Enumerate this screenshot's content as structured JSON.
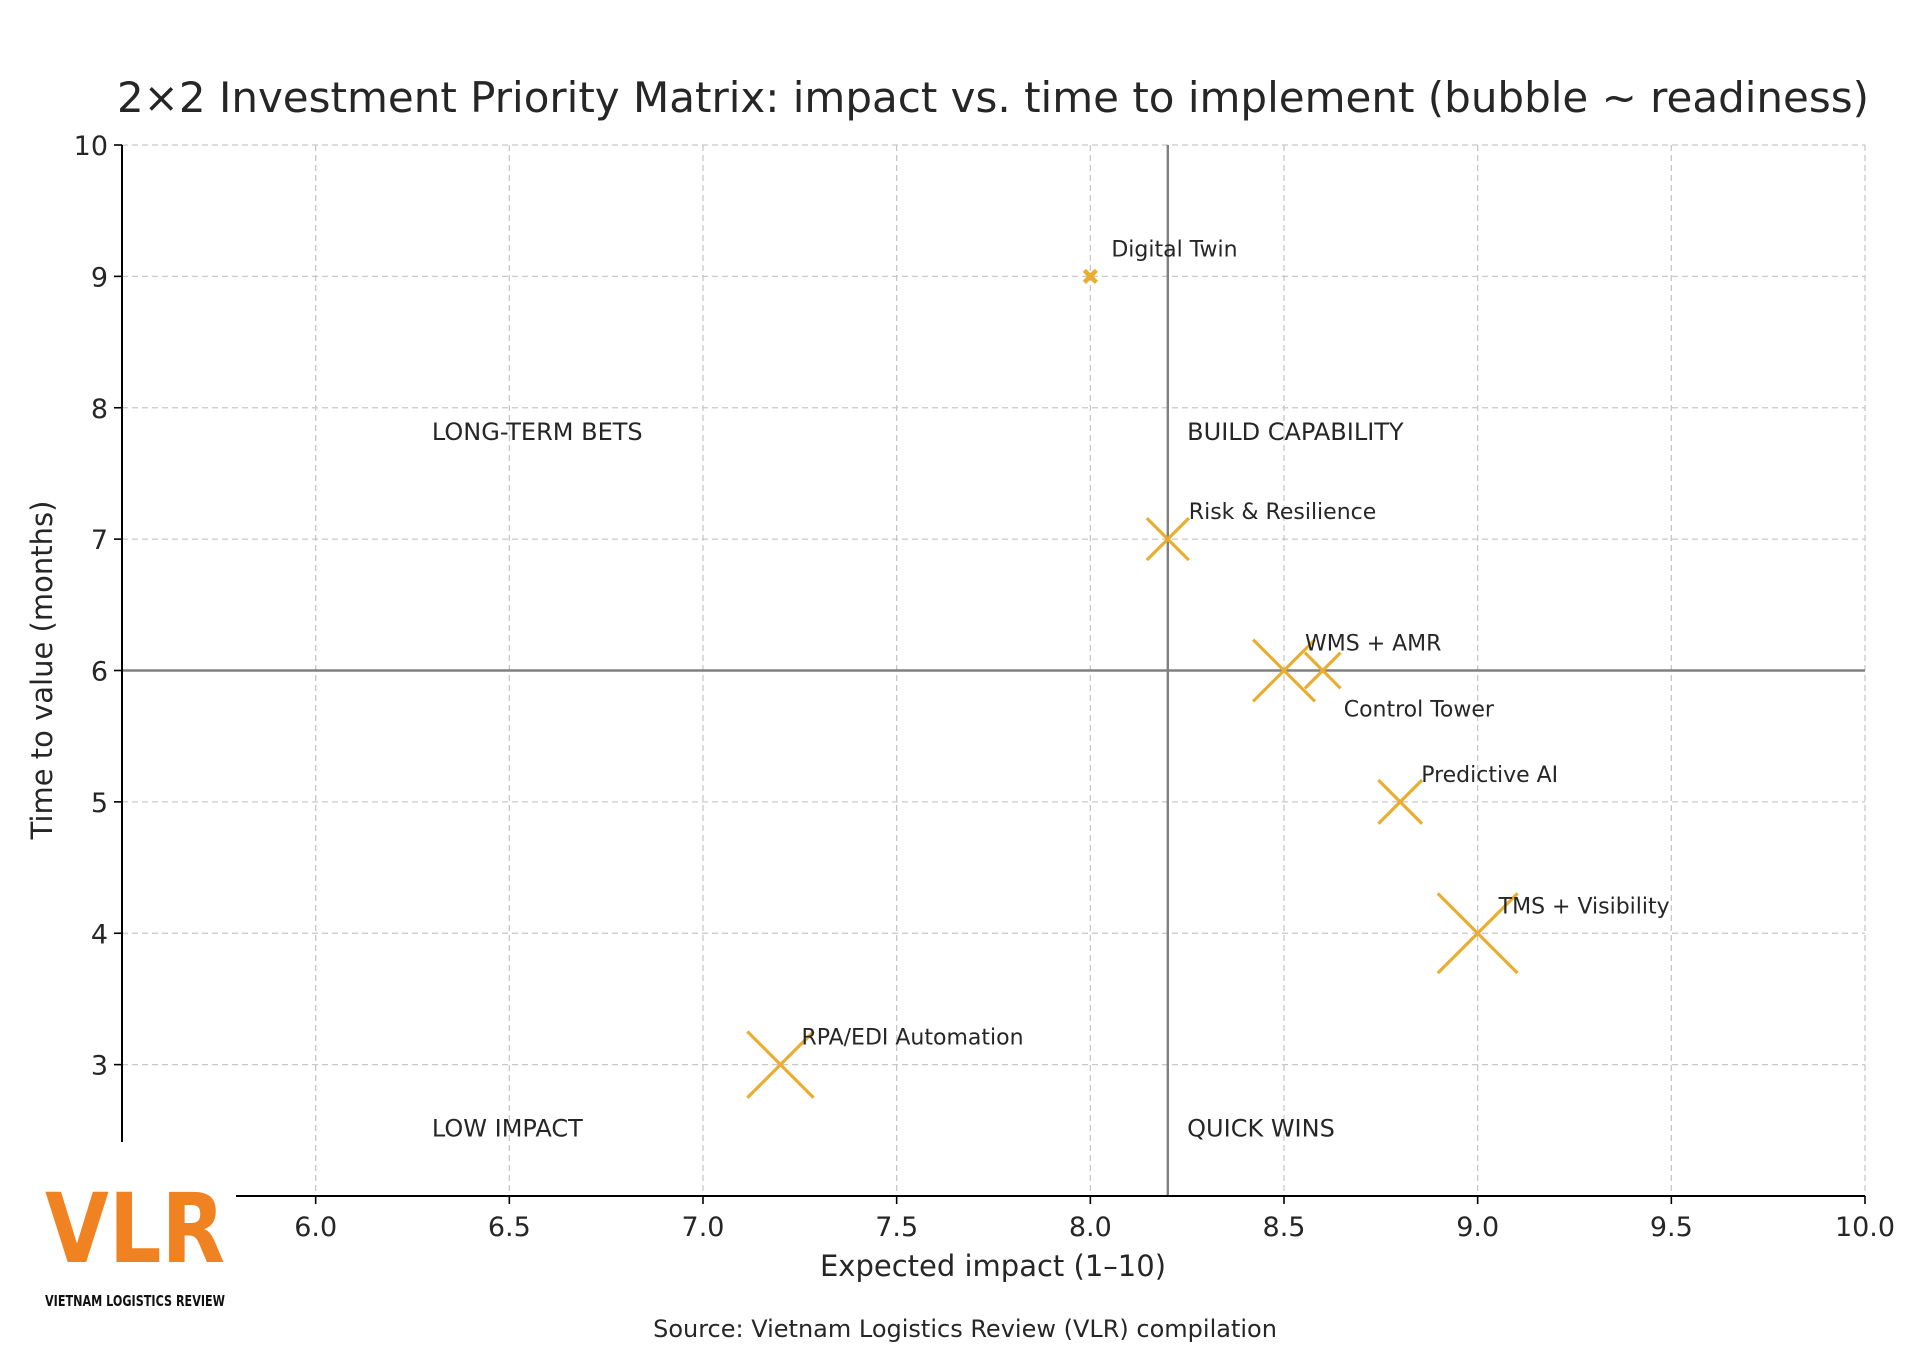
{
  "chart_data": {
    "type": "scatter",
    "title": "2×2 Investment Priority Matrix: impact vs. time to implement (bubble ~ readiness)",
    "xlabel": "Expected impact (1–10)",
    "ylabel": "Time to value (months)",
    "xlim": [
      5.5,
      10.0
    ],
    "ylim": [
      2.0,
      10.0
    ],
    "xticks": [
      "6.0",
      "6.5",
      "7.0",
      "7.5",
      "8.0",
      "8.5",
      "9.0",
      "9.5",
      "10.0"
    ],
    "yticks": [
      "3",
      "4",
      "5",
      "6",
      "7",
      "8",
      "9",
      "10"
    ],
    "grid": true,
    "marker": "x",
    "marker_color": "#E9AE30",
    "reference_lines": {
      "x": 8.2,
      "y": 6.0
    },
    "points": [
      {
        "label": "Digital Twin",
        "x": 8.0,
        "y": 9.0,
        "readiness": 0.2
      },
      {
        "label": "Risk & Resilience",
        "x": 8.2,
        "y": 7.0,
        "readiness": 2.5
      },
      {
        "label": "WMS + AMR",
        "x": 8.5,
        "y": 6.0,
        "readiness": 5.4
      },
      {
        "label": "Control Tower",
        "x": 8.6,
        "y": 6.0,
        "readiness": 1.8
      },
      {
        "label": "Predictive AI",
        "x": 8.8,
        "y": 5.0,
        "readiness": 2.7
      },
      {
        "label": "TMS + Visibility",
        "x": 9.0,
        "y": 4.0,
        "readiness": 9.0
      },
      {
        "label": "RPA/EDI Automation",
        "x": 7.2,
        "y": 3.0,
        "readiness": 6.2
      }
    ],
    "quadrant_labels": [
      {
        "text": "LONG-TERM BETS",
        "x": 6.3,
        "y": 7.8
      },
      {
        "text": "BUILD CAPABILITY",
        "x": 8.25,
        "y": 7.8
      },
      {
        "text": "LOW IMPACT",
        "x": 6.3,
        "y": 2.5
      },
      {
        "text": "QUICK WINS",
        "x": 8.25,
        "y": 2.5
      }
    ]
  },
  "source": "Source: Vietnam Logistics Review (VLR) compilation",
  "logo": {
    "mark": "VLR",
    "tagline": "VIETNAM LOGISTICS REVIEW",
    "color": "#F08222"
  }
}
